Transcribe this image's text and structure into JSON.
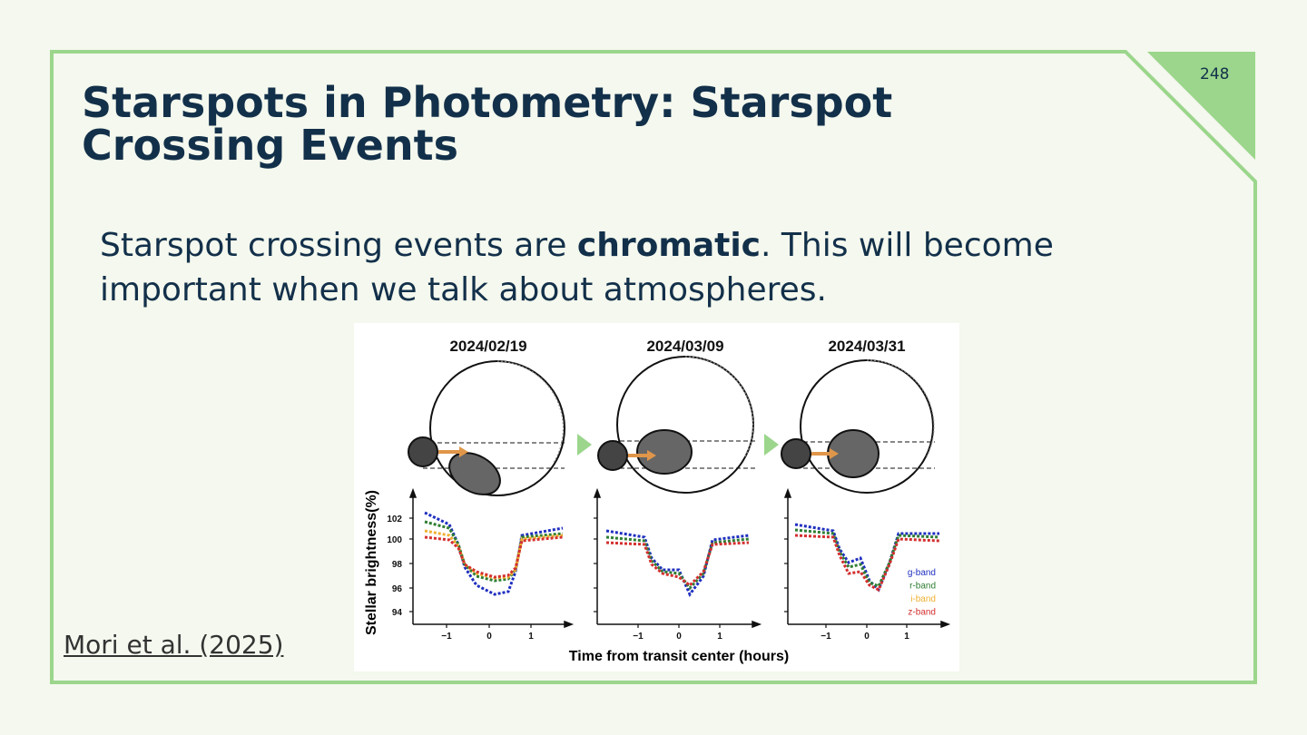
{
  "slide_number": "248",
  "title": "Starspots in Photometry: Starspot Crossing Events",
  "body": {
    "before": "Starspot crossing events are ",
    "bold": "chromatic",
    "after": ". This will become important when we talk about atmospheres."
  },
  "citation": "Mori et al. (2025)",
  "figure": {
    "panels": [
      {
        "date": "2024/02/19"
      },
      {
        "date": "2024/03/09"
      },
      {
        "date": "2024/03/31"
      }
    ],
    "y_label": "Stellar brightness(%)",
    "x_label": "Time from transit center (hours)",
    "y_ticks": [
      "102",
      "100",
      "98",
      "96",
      "94"
    ],
    "x_ticks": [
      "−1",
      "0",
      "1"
    ],
    "legend": [
      "g-band",
      "r-band",
      "i-band",
      "z-band"
    ]
  }
}
